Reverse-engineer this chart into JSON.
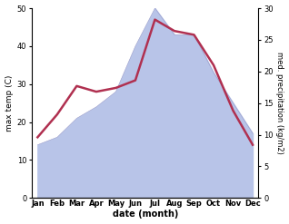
{
  "months": [
    "Jan",
    "Feb",
    "Mar",
    "Apr",
    "May",
    "Jun",
    "Jul",
    "Aug",
    "Sep",
    "Oct",
    "Nov",
    "Dec"
  ],
  "month_indices": [
    0,
    1,
    2,
    3,
    4,
    5,
    6,
    7,
    8,
    9,
    10,
    11
  ],
  "temp_max": [
    16,
    22,
    29.5,
    28,
    29,
    31,
    47,
    44,
    43,
    35,
    23,
    14
  ],
  "precip_left_scale": [
    14,
    16,
    21,
    24,
    28,
    40,
    50,
    43,
    43,
    33,
    25,
    17
  ],
  "precip_right_scale": [
    8.5,
    9.5,
    12.5,
    14.5,
    17,
    24,
    30,
    26,
    26,
    20,
    15,
    10
  ],
  "temp_color": "#b03050",
  "precip_fill_color": "#b8c4e8",
  "precip_edge_color": "#9090c0",
  "left_ylim": [
    0,
    50
  ],
  "right_ylim": [
    0,
    30
  ],
  "left_yticks": [
    0,
    10,
    20,
    30,
    40,
    50
  ],
  "right_yticks": [
    0,
    5,
    10,
    15,
    20,
    25,
    30
  ],
  "xlabel": "date (month)",
  "ylabel_left": "max temp (C)",
  "ylabel_right": "med. precipitation (kg/m2)",
  "temp_linewidth": 1.8,
  "fig_width": 3.18,
  "fig_height": 2.47,
  "dpi": 100
}
